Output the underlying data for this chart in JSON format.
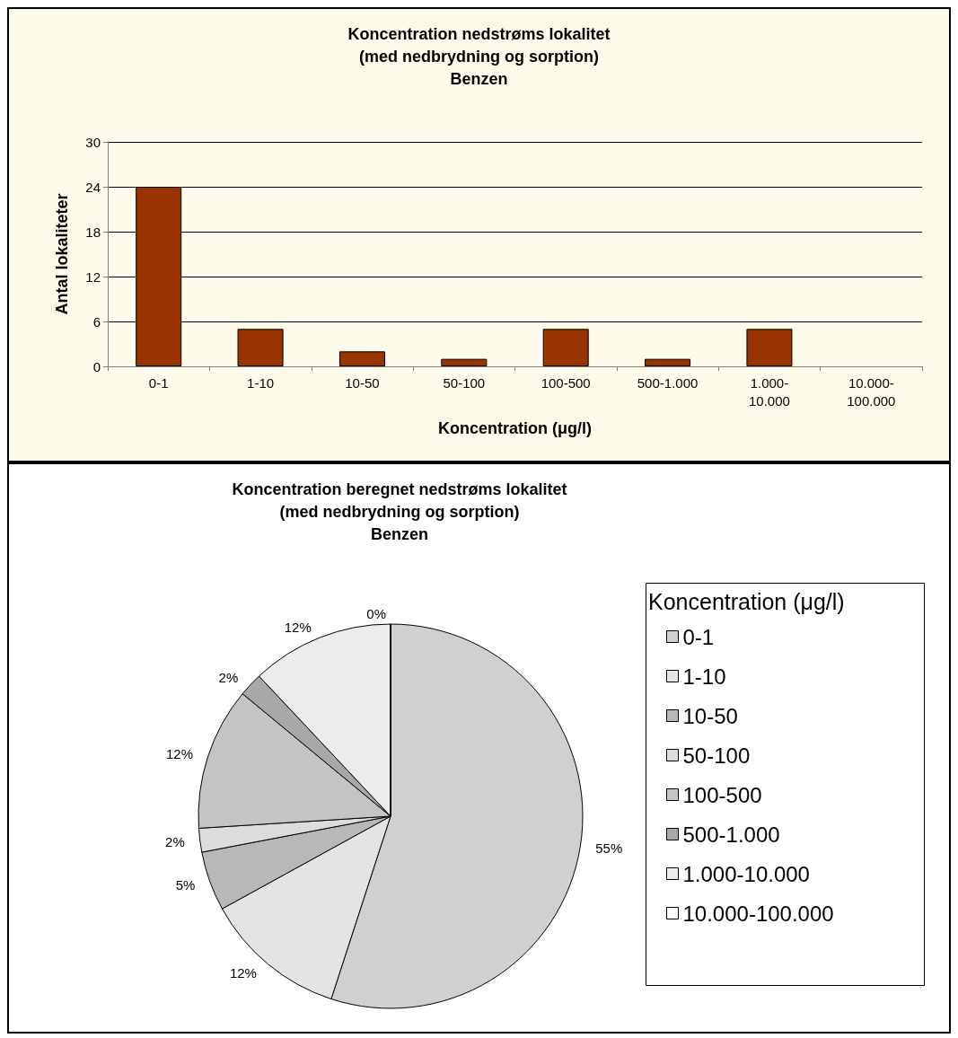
{
  "chart_data": [
    {
      "type": "bar",
      "title": "Koncentration nedstrøms lokalitet\n(med nedbrydning og sorption)\nBenzen",
      "xlabel": "Koncentration (μg/l)",
      "ylabel": "Antal lokaliteter",
      "categories": [
        "0-1",
        "1-10",
        "10-50",
        "50-100",
        "100-500",
        "500-1.000",
        "1.000-10.000",
        "10.000-100.000"
      ],
      "values": [
        24,
        5,
        2,
        1,
        5,
        1,
        5,
        0
      ],
      "color": "#993300",
      "ylim": [
        0,
        30
      ],
      "yticks": [
        0,
        6,
        12,
        18,
        24,
        30
      ],
      "grid": "y",
      "legend": false
    },
    {
      "type": "pie",
      "title": "Koncentration beregnet nedstrøms lokalitet\n(med nedbrydning og sorption)\nBenzen",
      "legend_title": "Koncentration (μg/l)",
      "categories": [
        "0-1",
        "1-10",
        "10-50",
        "50-100",
        "100-500",
        "500-1.000",
        "1.000-10.000",
        "10.000-100.000"
      ],
      "values": [
        55,
        12,
        5,
        2,
        12,
        2,
        12,
        0
      ],
      "value_labels": [
        "55%",
        "12%",
        "5%",
        "2%",
        "12%",
        "2%",
        "12%",
        "0%"
      ],
      "colors": [
        "#d0d0d0",
        "#e4e4e4",
        "#b8b8b8",
        "#dcdcdc",
        "#c4c4c4",
        "#a8a8a8",
        "#ececec",
        "#ffffff"
      ],
      "legend": "right"
    }
  ]
}
